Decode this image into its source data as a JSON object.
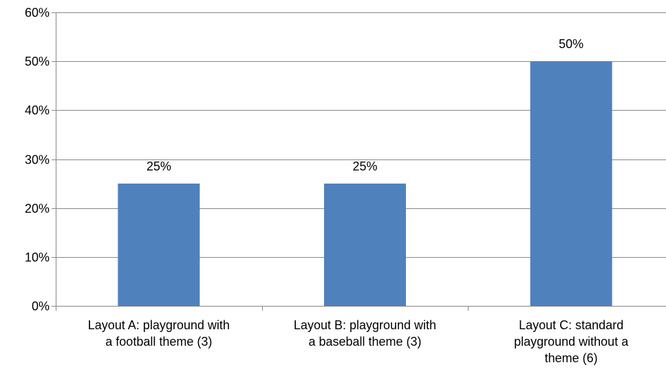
{
  "chart_data": {
    "type": "bar",
    "title": "",
    "xlabel": "",
    "ylabel": "",
    "categories": [
      [
        "Layout A: playground with",
        "a football theme (3)"
      ],
      [
        "Layout B: playground with",
        "a baseball theme (3)"
      ],
      [
        "Layout C: standard",
        "playground without a",
        "theme (6)"
      ]
    ],
    "values": [
      25,
      25,
      50
    ],
    "data_labels": [
      "25%",
      "25%",
      "50%"
    ],
    "ylim": [
      0,
      60
    ],
    "y_ticks": [
      0,
      10,
      20,
      30,
      40,
      50,
      60
    ],
    "y_tick_labels": [
      "0%",
      "10%",
      "20%",
      "30%",
      "40%",
      "50%",
      "60%"
    ],
    "grid": true,
    "legend": "none",
    "colors": {
      "bar": "#4F81BD",
      "grid": "#868686",
      "axis": "#868686"
    }
  }
}
